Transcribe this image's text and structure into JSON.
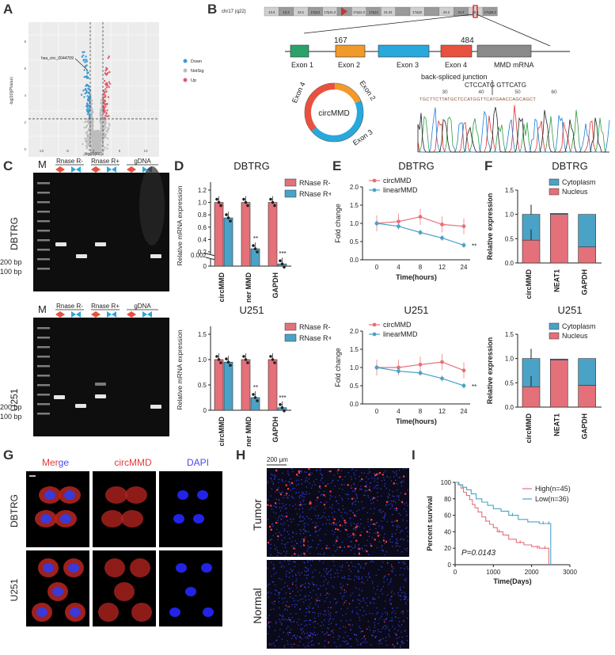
{
  "panel_labels": [
    "A",
    "B",
    "C",
    "D",
    "E",
    "F",
    "G",
    "H",
    "I"
  ],
  "colors": {
    "red": "#e4707a",
    "blue": "#4aa3c6",
    "grey": "#c8c8c8",
    "down": "#3d9bd1",
    "up": "#e05a6a"
  },
  "volcano": {
    "highlight_label": "hsa_circ_0044709",
    "ylabel": "-log[10](PValue)",
    "xlabel": "log(2)(FC)",
    "x_ticks": [
      "-10",
      "-5",
      "0",
      "5",
      "10"
    ],
    "y_ticks": [
      "0",
      "2",
      "4",
      "6",
      "8"
    ],
    "legend": [
      {
        "label": "Down",
        "color": "#3d9bd1"
      },
      {
        "label": "NotSig",
        "color": "#bdbdbd"
      },
      {
        "label": "Up",
        "color": "#e05a6a"
      }
    ]
  },
  "gene": {
    "chr_label": "chr17 (q22)",
    "bands": [
      "13.3",
      "13.2",
      "13.1",
      "17p12",
      "17p11.2",
      "",
      "17q11.2",
      "17q12",
      "21.31",
      "",
      "17q22",
      "",
      "24.2",
      "24.3",
      "25.1",
      "17q25.3"
    ],
    "exon_labels": [
      "Exon 1",
      "Exon 2",
      "Exon 3",
      "Exon 4",
      "MMD mRNA"
    ],
    "pos_a": "167",
    "pos_b": "484",
    "circ_label": "circMMD",
    "arc_labels": [
      "Exon 4",
      "Exon 2",
      "Exon 3"
    ],
    "junction_title": "back-spliced junction",
    "junction_seq": "CTCCATG GTTCATG",
    "seq_ticks": [
      "30",
      "40",
      "50",
      "60"
    ],
    "seq_read": "TGCTTCTTATGCTCCATGGTTCATGAACCAGCAGCT"
  },
  "gel": {
    "cell_lines": [
      "DBTRG",
      "U251"
    ],
    "marker": "M",
    "groups": [
      "Rnase R-",
      "Rnase R+",
      "gDNA"
    ],
    "bp_labels": [
      "200 bp",
      "100 bp"
    ]
  },
  "chart_data": [
    {
      "id": "D1",
      "type": "bar",
      "title": "DBTRG",
      "ylabel": "Relative mRNA expression",
      "categories": [
        "circMMD",
        "Liner MMD",
        "GAPDH"
      ],
      "series": [
        {
          "name": "RNase R-",
          "values": [
            1.0,
            1.0,
            1.0
          ]
        },
        {
          "name": "RNase R+",
          "values": [
            0.75,
            0.25,
            0.005
          ]
        }
      ],
      "y_ticks": [
        "0",
        "0.002",
        "0.2",
        "0.4",
        "0.6",
        "0.8",
        "1.0",
        "1.2"
      ],
      "sig": [
        "",
        "**",
        "***"
      ]
    },
    {
      "id": "D2",
      "type": "bar",
      "title": "U251",
      "ylabel": "Relative mRNA expression",
      "categories": [
        "circMMD",
        "Liner MMD",
        "GAPDH"
      ],
      "series": [
        {
          "name": "RNase R-",
          "values": [
            1.0,
            1.0,
            1.0
          ]
        },
        {
          "name": "RNase R+",
          "values": [
            0.95,
            0.25,
            0.05
          ]
        }
      ],
      "y_ticks": [
        "0",
        "0.5",
        "1.0",
        "1.5"
      ],
      "sig": [
        "",
        "**",
        "***"
      ]
    },
    {
      "id": "E1",
      "type": "line",
      "title": "DBTRG",
      "ylabel": "Fold change",
      "xlabel": "Time(hours)",
      "x": [
        0,
        4,
        8,
        12,
        24
      ],
      "series": [
        {
          "name": "circMMD",
          "values": [
            1.0,
            1.05,
            1.18,
            0.97,
            0.92
          ]
        },
        {
          "name": "linearMMD",
          "values": [
            1.0,
            0.92,
            0.75,
            0.6,
            0.4
          ]
        }
      ],
      "x_ticks": [
        "0",
        "4",
        "8",
        "12",
        "24"
      ],
      "y_ticks": [
        "0.0",
        "0.5",
        "1.0",
        "1.5",
        "2.0"
      ],
      "ylim": [
        0,
        2.0
      ],
      "sig": "**"
    },
    {
      "id": "E2",
      "type": "line",
      "title": "U251",
      "ylabel": "Fold change",
      "xlabel": "Time(hours)",
      "x": [
        0,
        4,
        8,
        12,
        24
      ],
      "series": [
        {
          "name": "circMMD",
          "values": [
            1.0,
            1.0,
            1.08,
            1.15,
            0.92
          ]
        },
        {
          "name": "linearMMD",
          "values": [
            1.0,
            0.9,
            0.85,
            0.7,
            0.5
          ]
        }
      ],
      "x_ticks": [
        "0",
        "4",
        "8",
        "12",
        "24"
      ],
      "y_ticks": [
        "0.0",
        "0.5",
        "1.0",
        "1.5",
        "2.0"
      ],
      "ylim": [
        0,
        2.0
      ],
      "sig": "**"
    },
    {
      "id": "F1",
      "type": "bar",
      "title": "DBTRG",
      "ylabel": "Relative expression",
      "categories": [
        "circMMD",
        "NEAT1",
        "GAPDH"
      ],
      "series": [
        {
          "name": "Nucleus",
          "values": [
            0.47,
            1.0,
            0.33
          ]
        },
        {
          "name": "Cytoplasm",
          "values": [
            0.53,
            0.02,
            0.67
          ]
        }
      ],
      "y_ticks": [
        "0.0",
        "0.5",
        "1.0",
        "1.5"
      ],
      "ylim": [
        0,
        1.5
      ]
    },
    {
      "id": "F2",
      "type": "bar",
      "title": "U251",
      "ylabel": "Relative expression",
      "categories": [
        "circMMD",
        "NEAT1",
        "GAPDH"
      ],
      "series": [
        {
          "name": "Nucleus",
          "values": [
            0.42,
            0.97,
            0.45
          ]
        },
        {
          "name": "Cytoplasm",
          "values": [
            0.58,
            0.02,
            0.55
          ]
        }
      ],
      "y_ticks": [
        "0.0",
        "0.5",
        "1.0",
        "1.5"
      ],
      "ylim": [
        0,
        1.5
      ]
    },
    {
      "id": "I",
      "type": "line",
      "ylabel": "Percent survival",
      "xlabel": "Time(Days)",
      "series": [
        {
          "name": "High(n=45)"
        },
        {
          "name": "Low(n=36)"
        }
      ],
      "x_ticks": [
        "0",
        "1000",
        "2000",
        "3000"
      ],
      "y_ticks": [
        "0",
        "20",
        "40",
        "60",
        "80",
        "100"
      ],
      "pvalue": "P=0.0143"
    }
  ],
  "fish": {
    "columns": [
      "Merge",
      "circMMD",
      "DAPI"
    ],
    "rows": [
      "DBTRG",
      "U251"
    ],
    "merge_parts": [
      "Mer",
      "ge"
    ]
  },
  "tissue": {
    "scale": "200 μm",
    "rows": [
      "Tumor",
      "Normal"
    ]
  }
}
